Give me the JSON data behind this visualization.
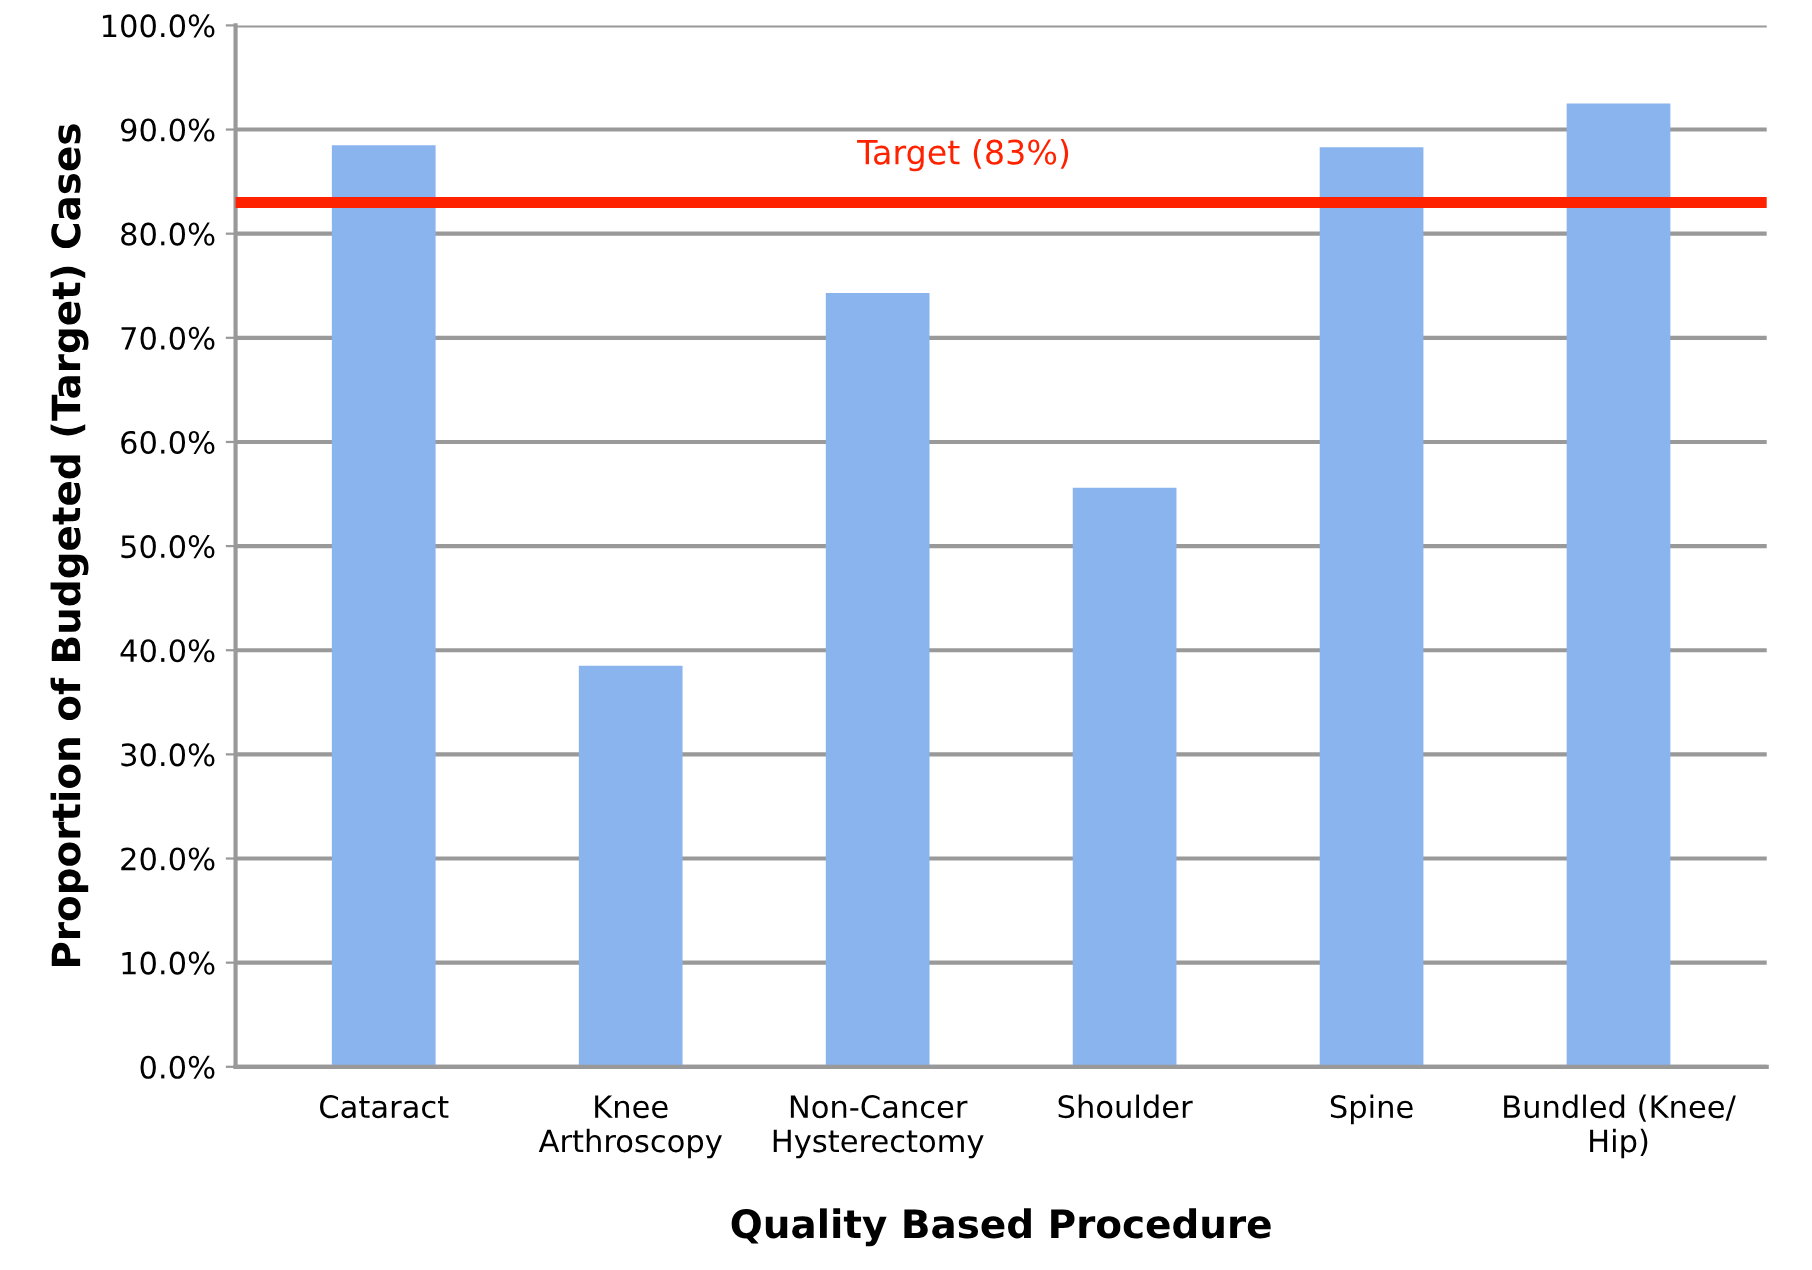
{
  "chart_data": {
    "type": "bar",
    "xlabel": "Quality Based Procedure",
    "ylabel": "Proportion of Budgeted (Target) Cases",
    "categories": [
      "Cataract",
      "Knee\nArthroscopy",
      "Non-Cancer\nHysterectomy",
      "Shoulder",
      "Spine",
      "Bundled (Knee/\nHip)"
    ],
    "values": [
      88.5,
      38.5,
      74.3,
      55.6,
      88.3,
      92.5
    ],
    "color": "#8ab4ee",
    "ylim": [
      0,
      100
    ],
    "yticks": [
      {
        "value": 0,
        "label": "0.0%"
      },
      {
        "value": 10,
        "label": "10.0%"
      },
      {
        "value": 20,
        "label": "20.0%"
      },
      {
        "value": 30,
        "label": "30.0%"
      },
      {
        "value": 40,
        "label": "40.0%"
      },
      {
        "value": 50,
        "label": "50.0%"
      },
      {
        "value": 60,
        "label": "60.0%"
      },
      {
        "value": 70,
        "label": "70.0%"
      },
      {
        "value": 80,
        "label": "80.0%"
      },
      {
        "value": 90,
        "label": "90.0%"
      },
      {
        "value": 100,
        "label": "100.0%"
      }
    ],
    "grid": "y",
    "ref_lines": [
      {
        "axis": "y",
        "value": 83,
        "label": "Target (83%)",
        "color": "#ff2200",
        "line_style": "solid"
      }
    ]
  }
}
